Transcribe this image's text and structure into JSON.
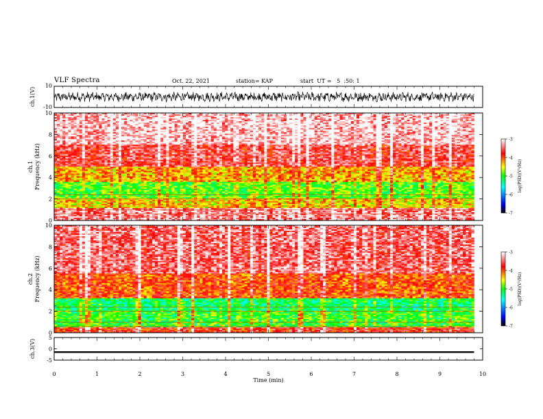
{
  "header": {
    "title": "VLF Spectra",
    "date": "Oct. 22, 2021",
    "station": "station= KAP",
    "start": "start  UT =   5  :50: 1"
  },
  "colors": {
    "waveform": "#000000",
    "colormap": [
      "#000000",
      "#0000ff",
      "#00ffff",
      "#00ff00",
      "#ffff00",
      "#ff0000",
      "#ffffff"
    ]
  },
  "chart_data": [
    {
      "id": "ch1-waveform",
      "type": "line",
      "ylabel": "ch.1(V)",
      "xlim": [
        0,
        10
      ],
      "ylim": [
        -10,
        10
      ],
      "ytick_labels": [
        "10",
        "-10"
      ],
      "x_end": 9.8,
      "description_level": "oscillating waveform around ~0 V with amplitude up to ~8 V"
    },
    {
      "id": "ch1-spectrogram",
      "type": "heatmap",
      "ylabel": "ch.1\nFrequency  (kHz)",
      "xlim": [
        0,
        10
      ],
      "ylim": [
        0,
        10
      ],
      "ytick_labels": [
        "0",
        "2",
        "4",
        "6",
        "8",
        "10"
      ],
      "x_end": 9.8,
      "colorbar": {
        "label": "log(PSD)(V²/Hz)",
        "range": [
          -7,
          -3
        ],
        "tick_labels": [
          "-3",
          "-4",
          "-5",
          "-6",
          "-7"
        ]
      },
      "bands_khz": [
        {
          "from": 0,
          "to": 1.2,
          "level": -3.4
        },
        {
          "from": 1.2,
          "to": 2.0,
          "level": -4.4
        },
        {
          "from": 2.0,
          "to": 3.6,
          "level": -4.9
        },
        {
          "from": 3.6,
          "to": 5.0,
          "level": -4.3
        },
        {
          "from": 5.0,
          "to": 7.0,
          "level": -3.6
        },
        {
          "from": 7.0,
          "to": 10.0,
          "level": -3.2
        }
      ]
    },
    {
      "id": "ch2-spectrogram",
      "type": "heatmap",
      "ylabel": "ch.2\nFrequency  (kHz)",
      "xlim": [
        0,
        10
      ],
      "ylim": [
        0,
        10
      ],
      "ytick_labels": [
        "0",
        "2",
        "4",
        "6",
        "8",
        "10"
      ],
      "x_end": 9.8,
      "colorbar": {
        "label": "log(PSD)(V²/Hz)",
        "range": [
          -7,
          -3
        ],
        "tick_labels": [
          "-3",
          "-4",
          "-5",
          "-6",
          "-7"
        ]
      },
      "bands_khz": [
        {
          "from": 0,
          "to": 0.5,
          "level": -3.8
        },
        {
          "from": 0.5,
          "to": 2.0,
          "level": -5.0
        },
        {
          "from": 2.0,
          "to": 3.2,
          "level": -5.2
        },
        {
          "from": 3.2,
          "to": 5.5,
          "level": -4.0
        },
        {
          "from": 5.5,
          "to": 10.0,
          "level": -3.5
        }
      ]
    },
    {
      "id": "ch3-waveform",
      "type": "line",
      "ylabel": "ch.3(V)",
      "xlim": [
        0,
        10
      ],
      "ylim": [
        -5,
        5
      ],
      "ytick_labels": [
        "5",
        "0",
        "-5"
      ],
      "x_end": 9.8,
      "band": [
        -1.8,
        -1.1
      ]
    }
  ],
  "xaxis": {
    "label": "Time  (min)",
    "ticks": [
      0,
      1,
      2,
      3,
      4,
      5,
      6,
      7,
      8,
      9,
      10
    ],
    "tick_labels": [
      "0",
      "1",
      "2",
      "3",
      "4",
      "5",
      "6",
      "7",
      "8",
      "9",
      "10"
    ]
  }
}
